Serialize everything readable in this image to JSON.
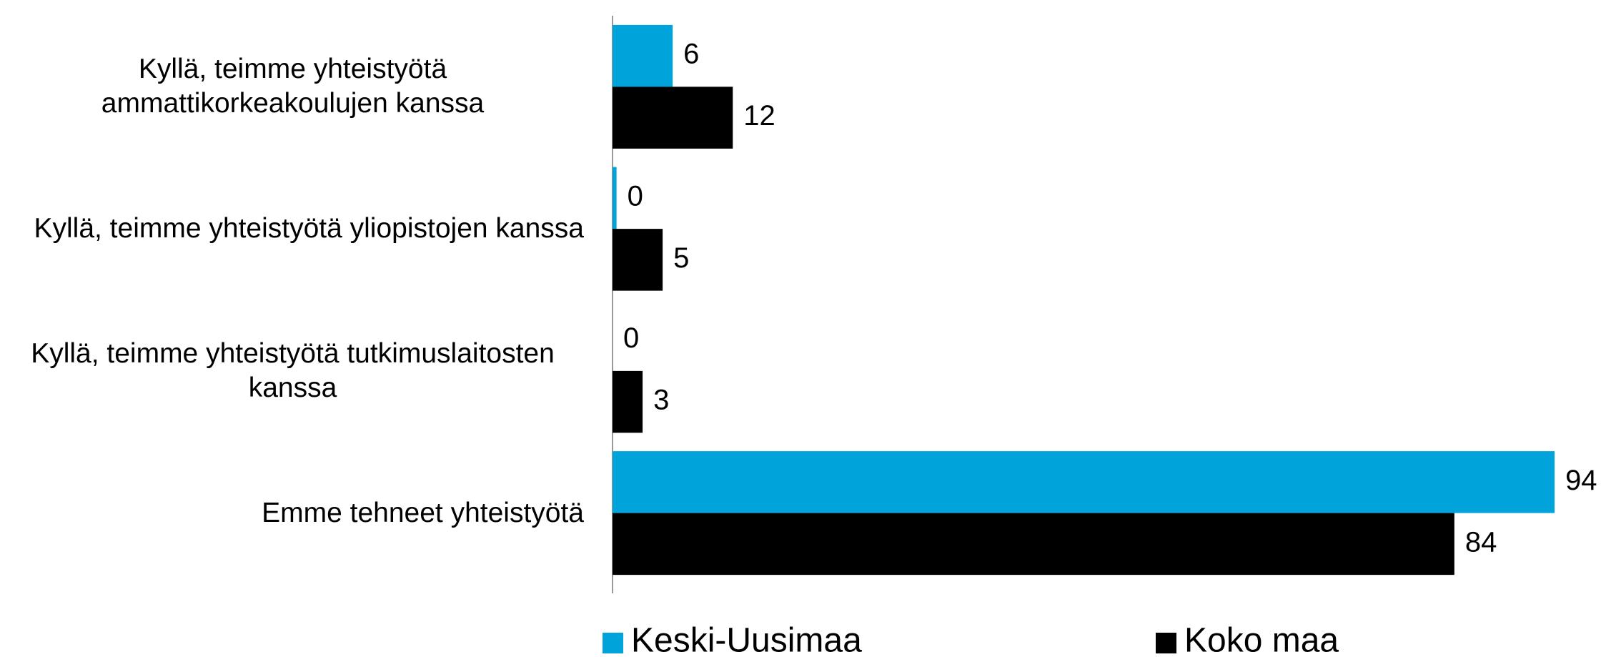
{
  "chart_data": {
    "type": "hbar",
    "categories": [
      "Kyllä, teimme yhteistyötä ammattikorkeakoulujen kanssa",
      "Kyllä, teimme yhteistyötä yliopistojen kanssa",
      "Kyllä, teimme yhteistyötä tutkimuslaitosten kanssa",
      "Emme tehneet yhteistyötä"
    ],
    "series": [
      {
        "name": "Keski-Uusimaa",
        "color": "#00a3da",
        "values": [
          6,
          0.4,
          0,
          94
        ],
        "value_labels": [
          "6",
          "0",
          "0",
          "94"
        ]
      },
      {
        "name": "Koko maa",
        "color": "#000000",
        "values": [
          12,
          5,
          3,
          84
        ]
      }
    ],
    "xlim": [
      0,
      100
    ],
    "legend": "bottom"
  }
}
